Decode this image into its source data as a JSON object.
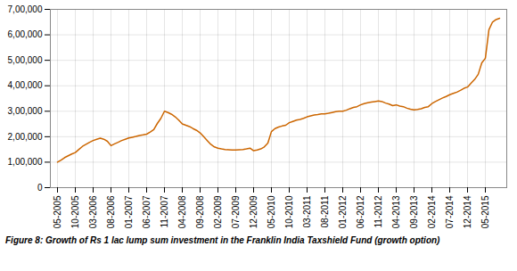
{
  "chart_data": {
    "type": "line",
    "caption": "Figure 8: Growth of Rs 1 lac lump sum investment in the Franklin India Taxshield Fund (growth option)",
    "categories": [
      "05-2005",
      null,
      null,
      null,
      null,
      "10-2005",
      null,
      null,
      null,
      null,
      "03-2006",
      null,
      null,
      null,
      null,
      "08-2006",
      null,
      null,
      null,
      null,
      "01-2007",
      null,
      null,
      null,
      null,
      "06-2007",
      null,
      null,
      null,
      null,
      "11-2007",
      null,
      null,
      null,
      null,
      "04-2008",
      null,
      null,
      null,
      null,
      "09-2008",
      null,
      null,
      null,
      null,
      "02-2009",
      null,
      null,
      null,
      null,
      "07-2009",
      null,
      null,
      null,
      null,
      "12-2009",
      null,
      null,
      null,
      null,
      "05-2010",
      null,
      null,
      null,
      null,
      "10-2010",
      null,
      null,
      null,
      null,
      "03-2011",
      null,
      null,
      null,
      null,
      "08-2011",
      null,
      null,
      null,
      null,
      "01-2012",
      null,
      null,
      null,
      null,
      "06-2012",
      null,
      null,
      null,
      null,
      "11-2012",
      null,
      null,
      null,
      null,
      "04-2013",
      null,
      null,
      null,
      null,
      "09-2013",
      null,
      null,
      null,
      null,
      "02-2014",
      null,
      null,
      null,
      null,
      "07-2014",
      null,
      null,
      null,
      null,
      "12-2014",
      null,
      null,
      null,
      null,
      "05-2015",
      null,
      null,
      null,
      null
    ],
    "values": [
      100000,
      108000,
      118000,
      125000,
      132000,
      138000,
      150000,
      162000,
      170000,
      178000,
      185000,
      190000,
      194000,
      190000,
      182000,
      165000,
      172000,
      178000,
      185000,
      190000,
      195000,
      198000,
      201000,
      205000,
      207000,
      210000,
      218000,
      228000,
      252000,
      272000,
      300000,
      295000,
      288000,
      278000,
      265000,
      250000,
      245000,
      240000,
      232000,
      225000,
      215000,
      200000,
      185000,
      170000,
      160000,
      155000,
      152000,
      150000,
      149000,
      148000,
      148000,
      149000,
      150000,
      152000,
      155000,
      145000,
      148000,
      152000,
      160000,
      175000,
      220000,
      232000,
      238000,
      242000,
      245000,
      255000,
      260000,
      265000,
      268000,
      272000,
      278000,
      282000,
      285000,
      287000,
      290000,
      290000,
      292000,
      295000,
      298000,
      300000,
      300000,
      304000,
      310000,
      315000,
      318000,
      325000,
      330000,
      333000,
      336000,
      338000,
      340000,
      338000,
      332000,
      328000,
      322000,
      325000,
      320000,
      318000,
      312000,
      308000,
      305000,
      307000,
      310000,
      315000,
      318000,
      330000,
      338000,
      345000,
      352000,
      358000,
      365000,
      370000,
      375000,
      382000,
      390000,
      395000,
      410000,
      425000,
      445000,
      490000,
      508000,
      620000,
      650000,
      660000,
      665000
    ],
    "color": "#cc6600",
    "ylim": [
      0,
      700000
    ],
    "yticks": [
      0,
      {
        "value": 100000,
        "label": "1,00,000"
      },
      {
        "value": 200000,
        "label": "2,00,000"
      },
      {
        "value": 300000,
        "label": "3,00,000"
      },
      {
        "value": 400000,
        "label": "4,00,000"
      },
      {
        "value": 500000,
        "label": "5,00,000"
      },
      {
        "value": 600000,
        "label": "6,00,000"
      },
      {
        "value": 700000,
        "label": "7,00,000"
      }
    ],
    "grid": true
  }
}
